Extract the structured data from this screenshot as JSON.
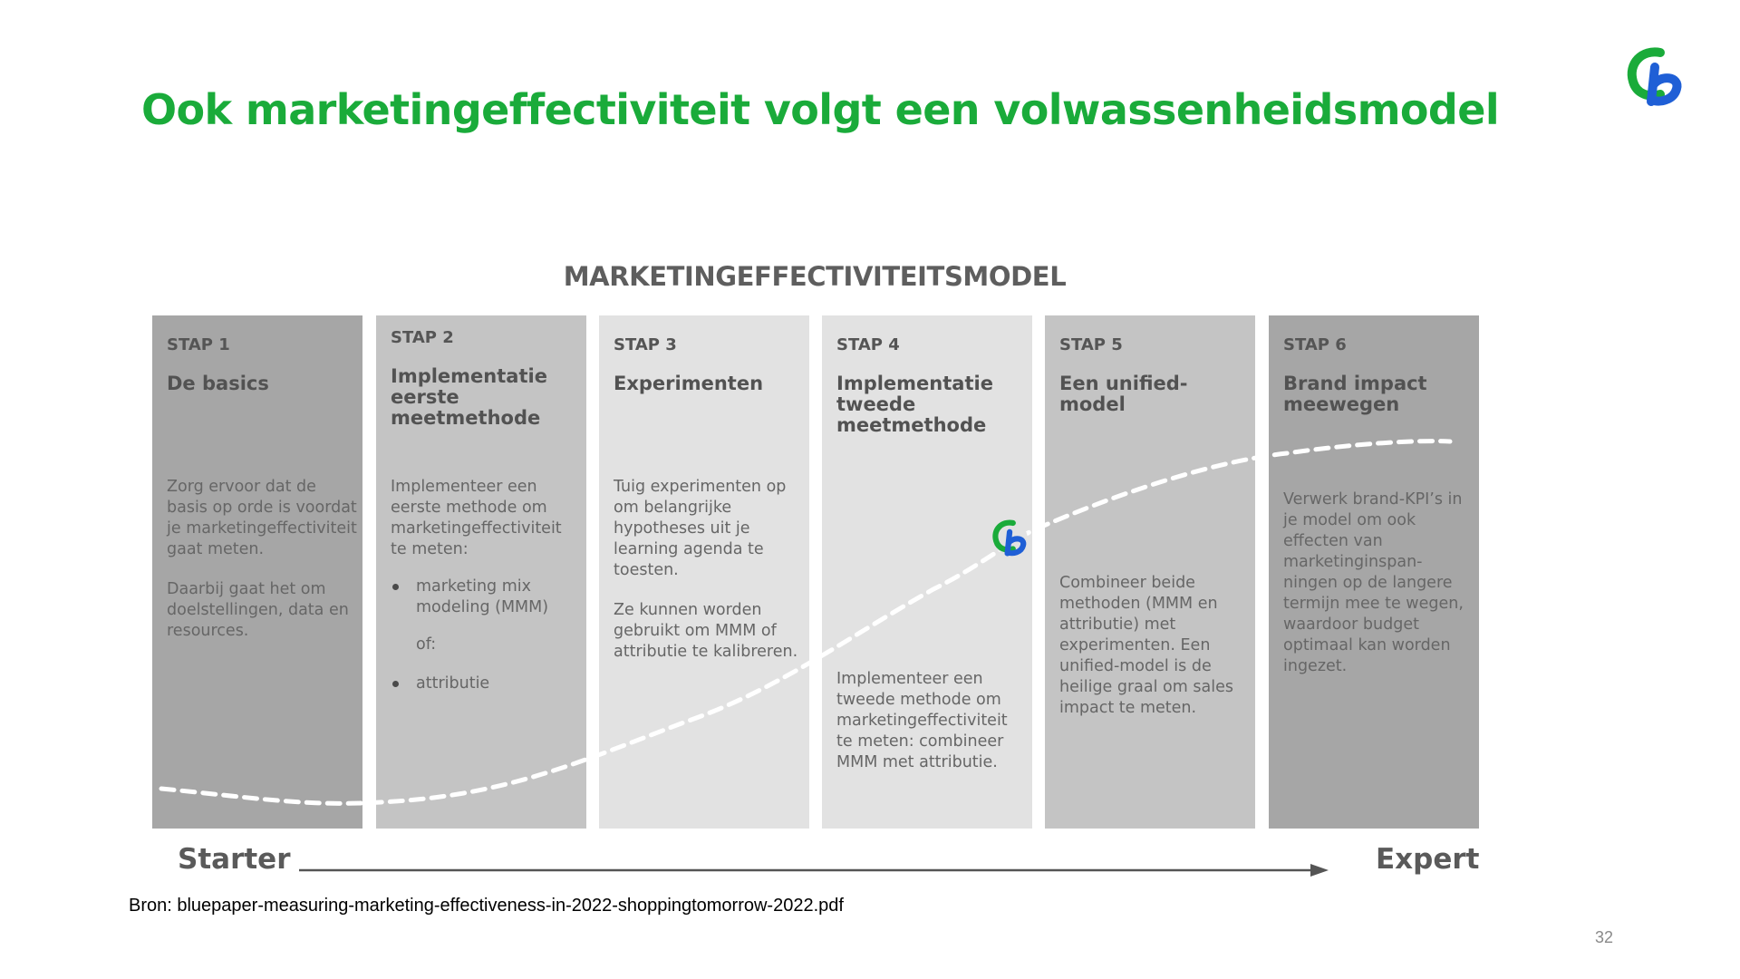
{
  "slide": {
    "title": "Ook marketingeffectiviteit volgt een volwassenheidsmodel",
    "source": "Bron: bluepaper-measuring-marketing-effectiveness-in-2022-shoppingtomorrow-2022.pdf",
    "page_number": "32"
  },
  "colors": {
    "title": "#1aab3a",
    "logo_green": "#1aab3a",
    "logo_blue": "#1f5fd6"
  },
  "diagram": {
    "title": "MARKETINGEFFECTIVITEITSMODEL",
    "scale_start": "Starter",
    "scale_end": "Expert",
    "steps": [
      {
        "label": "STAP 1",
        "title": "De basics",
        "color": "#a6a6a6",
        "paragraphs": [
          "Zorg ervoor dat de basis op orde is voordat je marketingeffectiviteit gaat meten.",
          "Daarbij gaat het om doelstellingen, data en resources."
        ]
      },
      {
        "label": "STAP 2",
        "title": "Implementatie eerste meetmethode",
        "color": "#c4c4c4",
        "intro": "Implementeer een eerste methode om marketingeffectiviteit te meten:",
        "bullet_1": "marketing mix modeling (MMM)",
        "connector": "of:",
        "bullet_2": "attributie"
      },
      {
        "label": "STAP 3",
        "title": "Experimenten",
        "color": "#e2e2e2",
        "paragraphs": [
          "Tuig experimenten op om belangrijke hypotheses uit je learning agenda te toesten.",
          "Ze kunnen worden gebruikt om MMM of attributie te kalibreren."
        ]
      },
      {
        "label": "STAP 4",
        "title": "Implementatie tweede meetmethode",
        "color": "#e2e2e2",
        "paragraphs": [
          "Implementeer een tweede methode om marketingeffectiviteit te meten: combineer MMM met attributie."
        ]
      },
      {
        "label": "STAP 5",
        "title": "Een unified-model",
        "color": "#c4c4c4",
        "paragraphs": [
          "Combineer beide methoden (MMM en attributie) met experimenten. Een unified-model is de heilige graal om sales impact te meten."
        ]
      },
      {
        "label": "STAP 6",
        "title": "Brand impact meewegen",
        "color": "#a6a6a6",
        "paragraphs": [
          "Verwerk brand-KPI’s in je model om ook effecten van marketinginspan-ningen op de langere termijn mee te wegen, waardoor budget optimaal kan worden ingezet."
        ]
      }
    ]
  }
}
